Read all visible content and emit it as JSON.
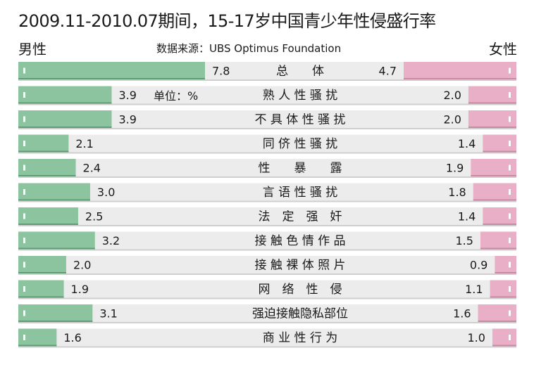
{
  "chart_data": {
    "type": "bar",
    "title": "2009.11-2010.07期间，15-17岁中国青少年性侵盛行率",
    "subtitle": "数据来源：UBS Optimus Foundation",
    "unit_note": "单位：%",
    "left_label": "男性",
    "right_label": "女性",
    "categories": [
      "总体",
      "熟人性骚扰",
      "不具体性骚扰",
      "同侪性骚扰",
      "性暴露",
      "言语性骚扰",
      "法定强奸",
      "接触色情作品",
      "接触裸体照片",
      "网络性侵",
      "强迫接触隐私部位",
      "商业性行为"
    ],
    "category_display": [
      "总　　体",
      "熟 人 性 骚 扰",
      "不 具 体 性 骚 扰",
      "同 侪 性 骚 扰",
      "性　　暴　　露",
      "言 语 性 骚 扰",
      "法　定　强　奸",
      "接 触 色 情 作 品",
      "接 触 裸 体 照 片",
      "网　络　性　侵",
      "强迫接触隐私部位",
      "商 业 性 行 为"
    ],
    "series": [
      {
        "values": [
          7.8,
          3.9,
          3.9,
          2.1,
          2.4,
          3.0,
          2.5,
          3.2,
          2.0,
          1.9,
          3.1,
          1.6
        ],
        "labels": [
          "7.8",
          "3.9",
          "3.9",
          "2.1",
          "2.4",
          "3.0",
          "2.5",
          "3.2",
          "2.0",
          "1.9",
          "3.1",
          "1.6"
        ],
        "color": "#8bc49e"
      },
      {
        "values": [
          4.7,
          2.0,
          2.0,
          1.4,
          1.9,
          1.8,
          1.4,
          1.5,
          0.9,
          1.1,
          1.6,
          1.0
        ],
        "labels": [
          "4.7",
          "2.0",
          "2.0",
          "1.4",
          "1.9",
          "1.8",
          "1.4",
          "1.5",
          "0.9",
          "1.1",
          "1.6",
          "1.0"
        ],
        "color": "#e8afc6"
      }
    ],
    "row_background": "#ececec"
  }
}
